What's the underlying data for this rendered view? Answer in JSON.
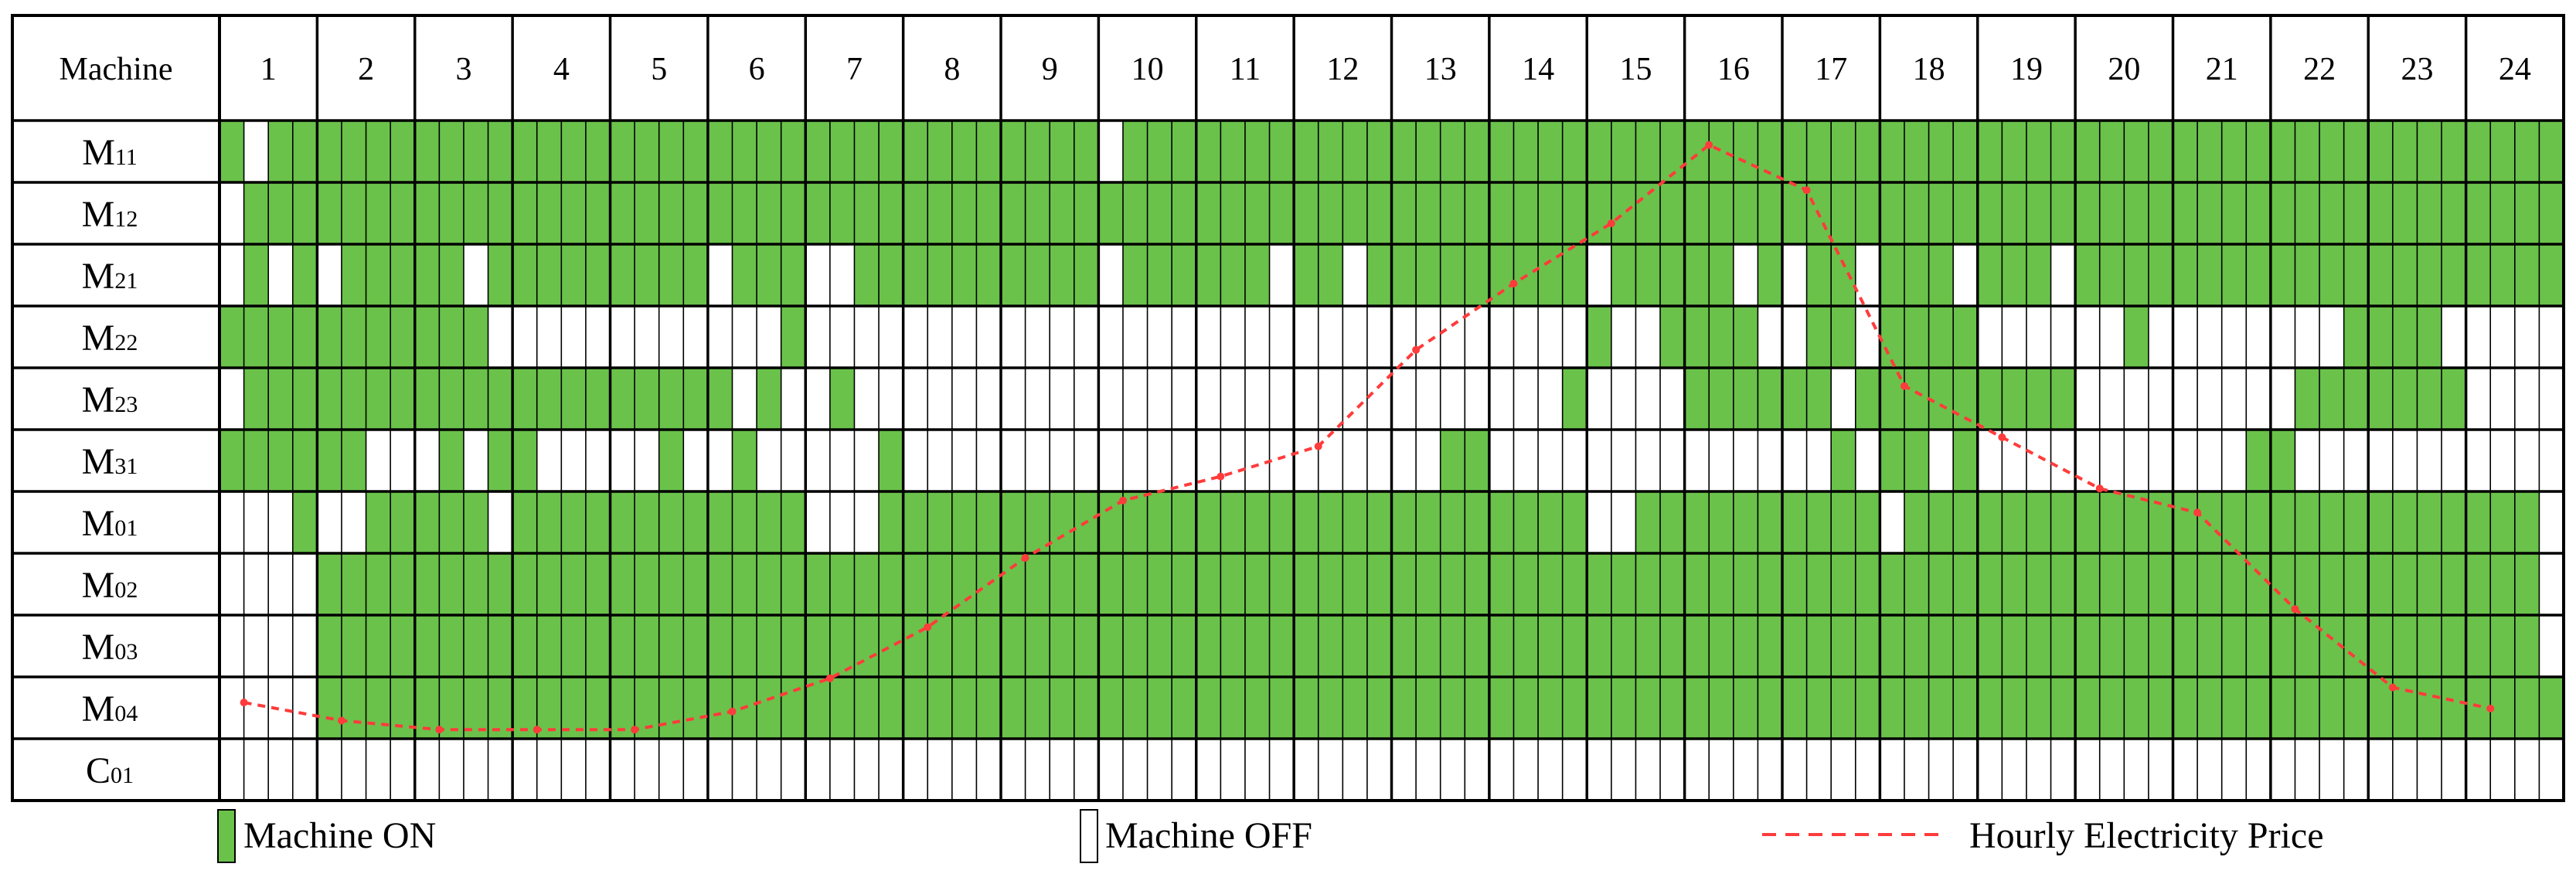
{
  "chart_data": {
    "type": "heatmap",
    "title": "",
    "header_label": "Machine",
    "hours": [
      "1",
      "2",
      "3",
      "4",
      "5",
      "6",
      "7",
      "8",
      "9",
      "10",
      "11",
      "12",
      "13",
      "14",
      "15",
      "16",
      "17",
      "18",
      "19",
      "20",
      "21",
      "22",
      "23",
      "24"
    ],
    "slots_per_hour": 4,
    "machines": [
      {
        "main": "M",
        "sub": "11",
        "on": "101111111111111111111111111111111111011111111111111111111111111111111111111111111111111111111111"
      },
      {
        "main": "M",
        "sub": "12",
        "on": "011111111111111111111111111111111111111111111111111111111111111111111111111111111111111111111111"
      },
      {
        "main": "M",
        "sub": "21",
        "on": "010101111101111111110111001111111111011111101101111111110111110101101110111011111111111111111111"
      },
      {
        "main": "M",
        "sub": "22",
        "on": "111111111110000000000001000000000000000000000000000000001001111001101111000000100000000111100000"
      },
      {
        "main": "M",
        "sub": "23",
        "on": "011111111111111111111010010000000000000000000000000000010000111111011111111100000000011111110000"
      },
      {
        "main": "M",
        "sub": "31",
        "on": "111111000101100000100100000100000000000000000000001100000000000000101101000000000001100000000000"
      },
      {
        "main": "M",
        "sub": "01",
        "on": "000100111110111111111111000111111111111111111111111111110011111111110111111111111111111111111110"
      },
      {
        "main": "M",
        "sub": "02",
        "on": "000011111111111111111111111111111111111111111111111111111111111111111111111111111111111111111110"
      },
      {
        "main": "M",
        "sub": "03",
        "on": "000011111111111111111111111111111111111111111111111111111111111111111111111111111111111111111110"
      },
      {
        "main": "M",
        "sub": "04",
        "on": "000011111111111111111111111111111111111111111111111111111111111111111111111111111111111111111111"
      },
      {
        "main": "C",
        "sub": "01",
        "on": "000000000000000000000000000000000000000000000000000000000000000000000000000000000000000000000000"
      }
    ],
    "price_curve": {
      "name": "Hourly Electricity Price",
      "hours": [
        1,
        2,
        3,
        4,
        5,
        6,
        7,
        8,
        9,
        10,
        11,
        12,
        13,
        14,
        15,
        16,
        17,
        18,
        19,
        20,
        21,
        22,
        23,
        24
      ],
      "values": [
        0.55,
        0.25,
        0.1,
        0.1,
        0.1,
        0.4,
        0.95,
        1.8,
        2.95,
        3.9,
        4.3,
        4.8,
        6.4,
        7.5,
        8.5,
        9.8,
        9.05,
        5.8,
        4.95,
        4.1,
        3.7,
        2.1,
        0.8,
        0.45
      ],
      "ylim": [
        0,
        10
      ]
    },
    "legend": {
      "on_label": "Machine ON",
      "off_label": "Machine OFF",
      "price_label": "Hourly Electricity Price",
      "placement": "bottom"
    },
    "colors": {
      "on": "#6ac24a",
      "off": "#ffffff",
      "grid": "#000000",
      "price": "#ff3b3b"
    }
  }
}
